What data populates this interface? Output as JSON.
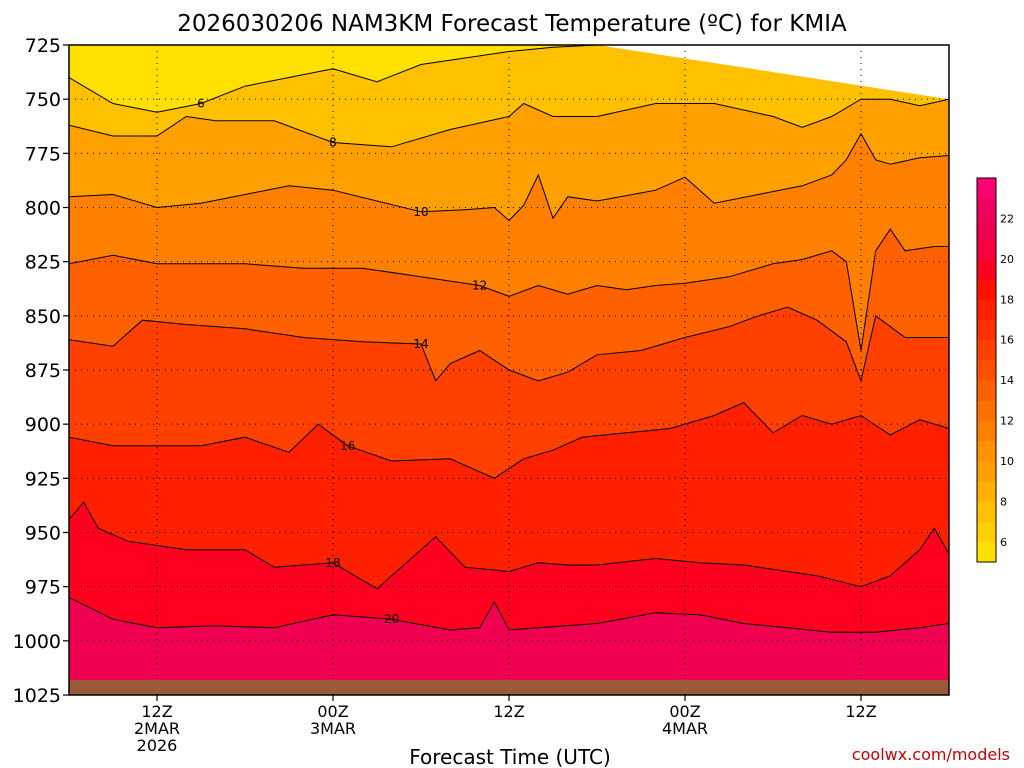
{
  "chart_data": {
    "type": "heatmap",
    "title": "2026030206 NAM3KM Forecast Temperature (ºC) for KMIA",
    "xlabel": "Forecast Time (UTC)",
    "ylabel": "",
    "x_ticks": [
      {
        "hour": 6,
        "lines": [
          "12Z",
          "2MAR",
          "2026"
        ]
      },
      {
        "hour": 18,
        "lines": [
          "00Z",
          "3MAR"
        ]
      },
      {
        "hour": 30,
        "lines": [
          "12Z"
        ]
      },
      {
        "hour": 42,
        "lines": [
          "00Z",
          "4MAR"
        ]
      },
      {
        "hour": 54,
        "lines": [
          "12Z"
        ]
      }
    ],
    "xlim": [
      0,
      60
    ],
    "y_ticks": [
      725,
      750,
      775,
      800,
      825,
      850,
      875,
      900,
      925,
      950,
      975,
      1000,
      1025
    ],
    "ylim": [
      725,
      1025
    ],
    "y_axis_inverted": true,
    "surface_pressure": 1018,
    "colorbar": {
      "ticks": [
        6,
        8,
        10,
        12,
        14,
        16,
        18,
        20,
        22
      ],
      "levels": [
        5,
        6,
        7,
        8,
        9,
        10,
        11,
        12,
        13,
        14,
        15,
        16,
        17,
        18,
        19,
        20,
        21,
        22,
        23,
        24
      ],
      "colors": [
        "#ffe000",
        "#ffd000",
        "#ffc000",
        "#ffb000",
        "#ffa000",
        "#ff9000",
        "#ff8000",
        "#ff7000",
        "#ff6000",
        "#ff5000",
        "#ff4000",
        "#ff3000",
        "#ff2000",
        "#ff1000",
        "#ff0020",
        "#f80040",
        "#f00050",
        "#f00060",
        "#ff0070"
      ]
    },
    "contours": [
      {
        "label": "6",
        "points": [
          [
            0,
            740
          ],
          [
            3,
            752
          ],
          [
            6,
            756
          ],
          [
            9,
            752
          ],
          [
            12,
            744
          ],
          [
            15,
            740
          ],
          [
            18,
            736
          ],
          [
            21,
            742
          ],
          [
            24,
            734
          ],
          [
            27,
            731
          ],
          [
            30,
            728
          ],
          [
            33,
            726
          ],
          [
            36,
            725
          ]
        ]
      },
      {
        "label": "8",
        "points": [
          [
            0,
            762
          ],
          [
            3,
            767
          ],
          [
            6,
            767
          ],
          [
            8,
            758
          ],
          [
            10,
            760
          ],
          [
            14,
            760
          ],
          [
            18,
            770
          ],
          [
            22,
            772
          ],
          [
            26,
            764
          ],
          [
            30,
            758
          ],
          [
            31,
            752
          ],
          [
            33,
            758
          ],
          [
            36,
            758
          ],
          [
            40,
            752
          ],
          [
            44,
            752
          ],
          [
            48,
            758
          ],
          [
            50,
            763
          ],
          [
            52,
            758
          ],
          [
            54,
            750
          ],
          [
            56,
            750
          ],
          [
            58,
            753
          ],
          [
            60,
            750
          ]
        ]
      },
      {
        "label": "10",
        "points": [
          [
            0,
            795
          ],
          [
            3,
            794
          ],
          [
            6,
            800
          ],
          [
            9,
            798
          ],
          [
            12,
            794
          ],
          [
            15,
            790
          ],
          [
            18,
            792
          ],
          [
            21,
            797
          ],
          [
            24,
            802
          ],
          [
            27,
            801
          ],
          [
            29,
            800
          ],
          [
            30,
            806
          ],
          [
            31,
            799
          ],
          [
            32,
            785
          ],
          [
            33,
            805
          ],
          [
            34,
            795
          ],
          [
            36,
            797
          ],
          [
            40,
            792
          ],
          [
            42,
            786
          ],
          [
            44,
            798
          ],
          [
            47,
            794
          ],
          [
            50,
            790
          ],
          [
            52,
            785
          ],
          [
            53,
            778
          ],
          [
            54,
            766
          ],
          [
            55,
            778
          ],
          [
            56,
            780
          ],
          [
            58,
            777
          ],
          [
            60,
            776
          ]
        ]
      },
      {
        "label": "12",
        "points": [
          [
            0,
            826
          ],
          [
            3,
            822
          ],
          [
            6,
            826
          ],
          [
            9,
            826
          ],
          [
            12,
            826
          ],
          [
            16,
            828
          ],
          [
            20,
            828
          ],
          [
            24,
            832
          ],
          [
            28,
            836
          ],
          [
            30,
            841
          ],
          [
            32,
            836
          ],
          [
            34,
            840
          ],
          [
            36,
            836
          ],
          [
            38,
            838
          ],
          [
            40,
            836
          ],
          [
            42,
            835
          ],
          [
            45,
            832
          ],
          [
            48,
            826
          ],
          [
            50,
            824
          ],
          [
            52,
            820
          ],
          [
            53,
            825
          ],
          [
            54,
            866
          ],
          [
            55,
            820
          ],
          [
            56,
            810
          ],
          [
            57,
            820
          ],
          [
            59,
            818
          ],
          [
            60,
            818
          ]
        ]
      },
      {
        "label": "14",
        "points": [
          [
            0,
            861
          ],
          [
            3,
            864
          ],
          [
            5,
            852
          ],
          [
            8,
            854
          ],
          [
            12,
            856
          ],
          [
            16,
            860
          ],
          [
            20,
            862
          ],
          [
            24,
            863
          ],
          [
            25,
            880
          ],
          [
            26,
            872
          ],
          [
            28,
            866
          ],
          [
            30,
            875
          ],
          [
            32,
            880
          ],
          [
            34,
            876
          ],
          [
            36,
            868
          ],
          [
            39,
            866
          ],
          [
            42,
            860
          ],
          [
            45,
            855
          ],
          [
            47,
            850
          ],
          [
            49,
            846
          ],
          [
            51,
            852
          ],
          [
            53,
            862
          ],
          [
            54,
            880
          ],
          [
            55,
            850
          ],
          [
            57,
            860
          ],
          [
            60,
            860
          ]
        ]
      },
      {
        "label": "16",
        "points": [
          [
            0,
            906
          ],
          [
            3,
            910
          ],
          [
            6,
            910
          ],
          [
            9,
            910
          ],
          [
            12,
            906
          ],
          [
            15,
            913
          ],
          [
            17,
            900
          ],
          [
            19,
            910
          ],
          [
            22,
            917
          ],
          [
            26,
            916
          ],
          [
            29,
            925
          ],
          [
            31,
            916
          ],
          [
            33,
            912
          ],
          [
            35,
            906
          ],
          [
            38,
            904
          ],
          [
            41,
            902
          ],
          [
            44,
            896
          ],
          [
            46,
            890
          ],
          [
            48,
            904
          ],
          [
            50,
            896
          ],
          [
            52,
            900
          ],
          [
            54,
            896
          ],
          [
            56,
            905
          ],
          [
            58,
            898
          ],
          [
            60,
            902
          ]
        ]
      },
      {
        "label": "18",
        "points": [
          [
            0,
            944
          ],
          [
            1,
            936
          ],
          [
            2,
            948
          ],
          [
            4,
            954
          ],
          [
            8,
            958
          ],
          [
            12,
            958
          ],
          [
            14,
            966
          ],
          [
            18,
            964
          ],
          [
            21,
            976
          ],
          [
            23,
            964
          ],
          [
            25,
            952
          ],
          [
            27,
            966
          ],
          [
            30,
            968
          ],
          [
            32,
            964
          ],
          [
            34,
            965
          ],
          [
            36,
            965
          ],
          [
            40,
            962
          ],
          [
            43,
            964
          ],
          [
            46,
            965
          ],
          [
            49,
            968
          ],
          [
            51,
            970
          ],
          [
            54,
            975
          ],
          [
            56,
            970
          ],
          [
            58,
            958
          ],
          [
            59,
            948
          ],
          [
            60,
            960
          ]
        ]
      },
      {
        "label": "20",
        "points": [
          [
            0,
            980
          ],
          [
            3,
            990
          ],
          [
            6,
            994
          ],
          [
            10,
            993
          ],
          [
            14,
            994
          ],
          [
            18,
            988
          ],
          [
            22,
            990
          ],
          [
            26,
            995
          ],
          [
            28,
            994
          ],
          [
            29,
            982
          ],
          [
            30,
            995
          ],
          [
            32,
            994
          ],
          [
            36,
            992
          ],
          [
            40,
            987
          ],
          [
            43,
            988
          ],
          [
            46,
            992
          ],
          [
            49,
            994
          ],
          [
            52,
            996
          ],
          [
            55,
            996
          ],
          [
            58,
            994
          ],
          [
            60,
            992
          ]
        ]
      }
    ]
  },
  "credit": "coolwx.com/models"
}
